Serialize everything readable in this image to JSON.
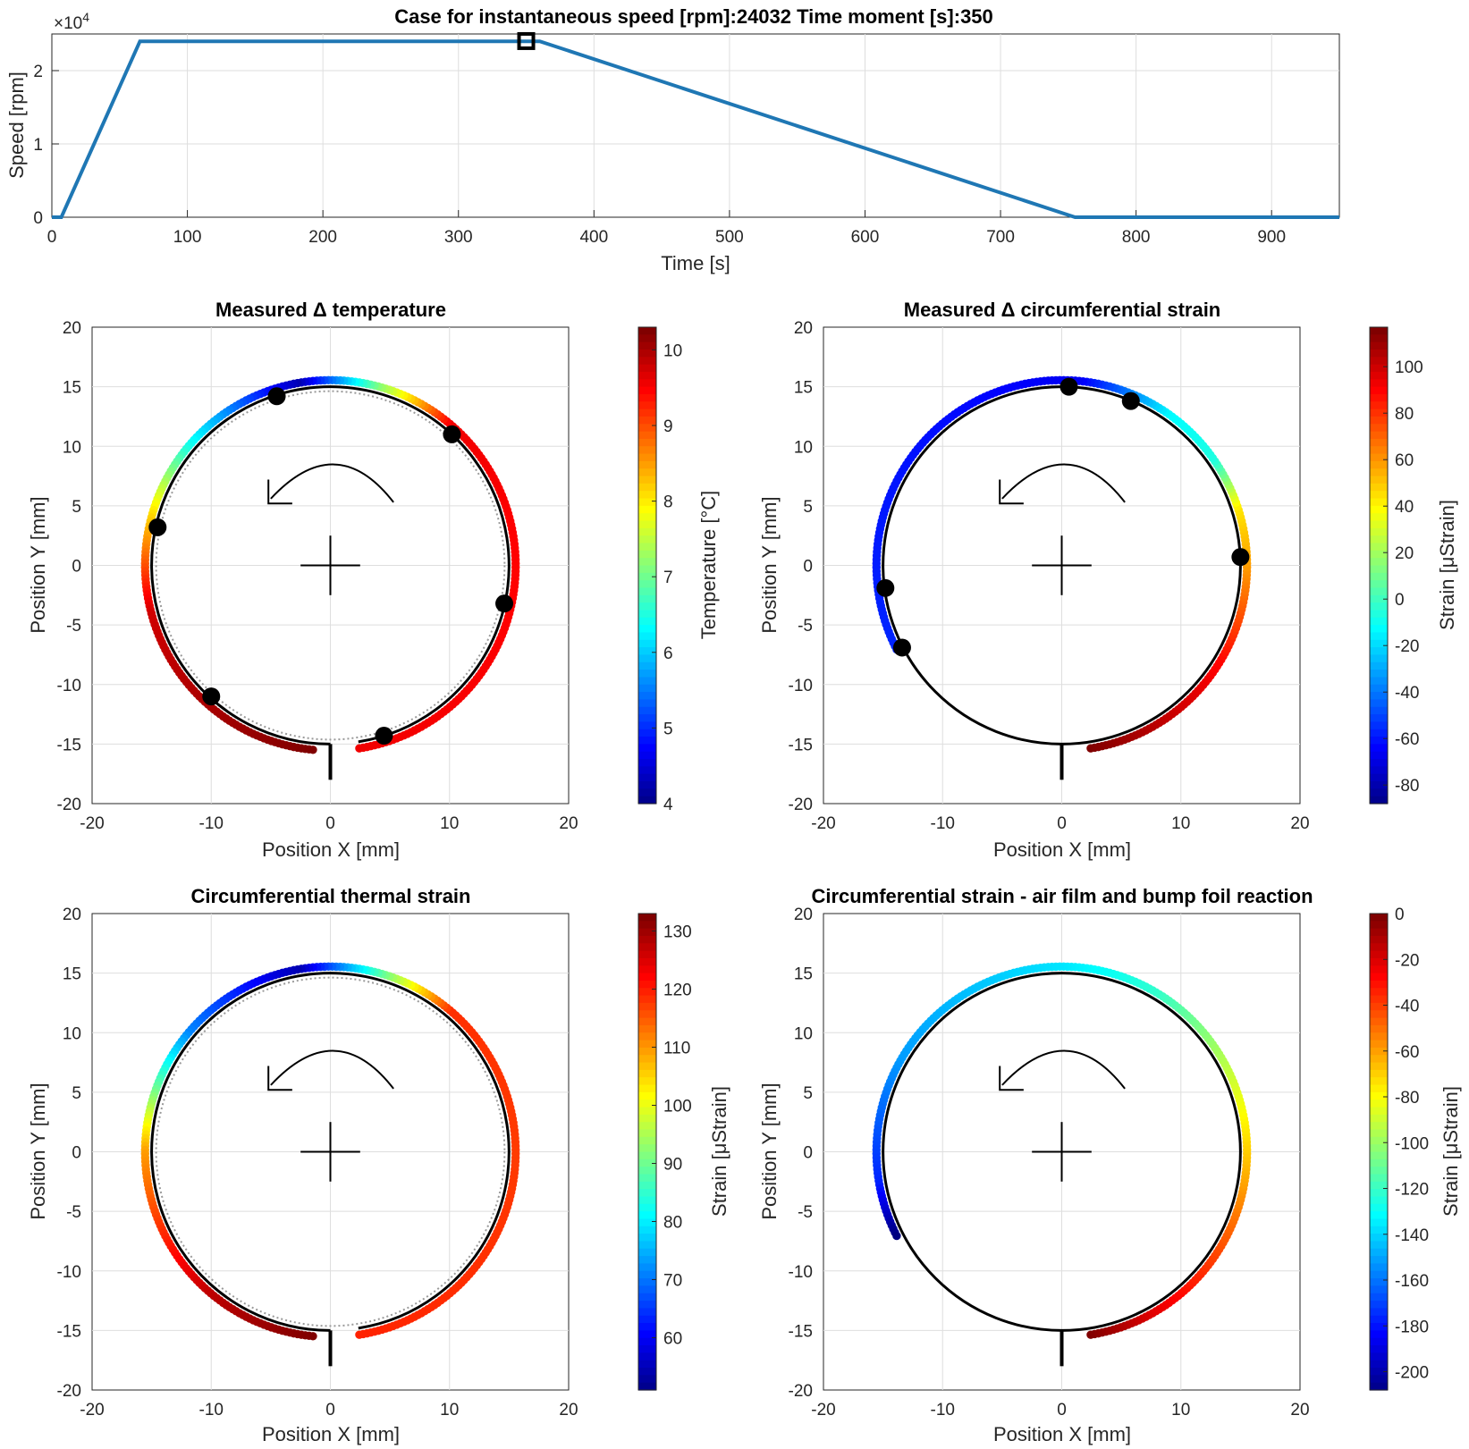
{
  "colors": {
    "speed_line": "#1f77b4",
    "marker": "#000000",
    "colormap": "jet"
  },
  "chart_data": [
    {
      "id": "speed",
      "type": "line",
      "title": "Case for instantaneous speed [rpm]:24032 Time moment [s]:350",
      "xlabel": "Time [s]",
      "ylabel": "Speed [rpm]",
      "y_exponent": "×10^4",
      "y_exponent_base": "×10",
      "y_exponent_power": "4",
      "xlim": [
        0,
        950
      ],
      "ylim": [
        0,
        2.5
      ],
      "xticks": [
        "0",
        "100",
        "200",
        "300",
        "400",
        "500",
        "600",
        "700",
        "800",
        "900"
      ],
      "yticks": [
        "0",
        "1",
        "2"
      ],
      "series": [
        {
          "x": [
            0,
            7,
            65,
            360,
            755,
            950
          ],
          "y": [
            0,
            0,
            2.4,
            2.4,
            0,
            0
          ]
        }
      ],
      "marker": {
        "x": 350,
        "y": 2.4032
      }
    },
    {
      "id": "temperature",
      "type": "scatter",
      "title": "Measured Δ temperature",
      "xlabel": "Position X [mm]",
      "ylabel": "Position Y [mm]",
      "xlim": [
        -20,
        20
      ],
      "ylim": [
        -20,
        20
      ],
      "xticks": [
        "-20",
        "-10",
        "0",
        "10",
        "20"
      ],
      "yticks": [
        "20",
        "15",
        "10",
        "5",
        "0",
        "-5",
        "-10",
        "-15",
        "-20"
      ],
      "colorbar": {
        "label": "Temperature [°C]",
        "ticks": [
          "10",
          "9",
          "8",
          "7",
          "6",
          "5",
          "4"
        ],
        "range": [
          4,
          10.3
        ]
      },
      "arc": {
        "start_deg": -81,
        "end_deg": 265
      },
      "color_profile": [
        {
          "angle": -81,
          "value": 9.6
        },
        {
          "angle": 0,
          "value": 9.5
        },
        {
          "angle": 50,
          "value": 9.6
        },
        {
          "angle": 75,
          "value": 7.2
        },
        {
          "angle": 100,
          "value": 4.3
        },
        {
          "angle": 140,
          "value": 6.5
        },
        {
          "angle": 165,
          "value": 8.2
        },
        {
          "angle": 195,
          "value": 9.8
        },
        {
          "angle": 265,
          "value": 10.3
        }
      ],
      "sensor_points": [
        {
          "x": -4.5,
          "y": 14.2
        },
        {
          "x": 10.2,
          "y": 11.0
        },
        {
          "x": -14.5,
          "y": 3.2
        },
        {
          "x": 14.6,
          "y": -3.2
        },
        {
          "x": -10.0,
          "y": -11.0
        },
        {
          "x": 4.5,
          "y": -14.3
        }
      ]
    },
    {
      "id": "measured_strain",
      "type": "scatter",
      "title": "Measured Δ circumferential strain",
      "xlabel": "Position X [mm]",
      "ylabel": "Position Y [mm]",
      "xlim": [
        -20,
        20
      ],
      "ylim": [
        -20,
        20
      ],
      "xticks": [
        "-20",
        "-10",
        "0",
        "10",
        "20"
      ],
      "yticks": [
        "20",
        "15",
        "10",
        "5",
        "0",
        "-5",
        "-10",
        "-15",
        "-20"
      ],
      "colorbar": {
        "label": "Strain [μStrain]",
        "ticks": [
          "100",
          "80",
          "60",
          "40",
          "20",
          "0",
          "-20",
          "-40",
          "-60",
          "-80"
        ],
        "range": [
          -88,
          117
        ]
      },
      "arc": {
        "start_deg": -81,
        "end_deg": 207
      },
      "color_profile": [
        {
          "angle": -81,
          "value": 117
        },
        {
          "angle": -30,
          "value": 90
        },
        {
          "angle": 0,
          "value": 60
        },
        {
          "angle": 18,
          "value": 45
        },
        {
          "angle": 35,
          "value": -5
        },
        {
          "angle": 55,
          "value": -12
        },
        {
          "angle": 85,
          "value": -65
        },
        {
          "angle": 130,
          "value": -60
        },
        {
          "angle": 207,
          "value": -55
        }
      ],
      "sensor_points": [
        {
          "x": 0.6,
          "y": 15.0
        },
        {
          "x": 5.8,
          "y": 13.8
        },
        {
          "x": 15.0,
          "y": 0.7
        },
        {
          "x": -14.8,
          "y": -1.9
        },
        {
          "x": -13.4,
          "y": -6.9
        }
      ]
    },
    {
      "id": "thermal_strain",
      "type": "scatter",
      "title": "Circumferential thermal strain",
      "xlabel": "Position X [mm]",
      "ylabel": "Position Y [mm]",
      "xlim": [
        -20,
        20
      ],
      "ylim": [
        -20,
        20
      ],
      "xticks": [
        "-20",
        "-10",
        "0",
        "10",
        "20"
      ],
      "yticks": [
        "20",
        "15",
        "10",
        "5",
        "0",
        "-5",
        "-10",
        "-15",
        "-20"
      ],
      "colorbar": {
        "label": "Strain [μStrain]",
        "ticks": [
          "130",
          "120",
          "110",
          "100",
          "90",
          "80",
          "70",
          "60"
        ],
        "range": [
          51,
          133
        ]
      },
      "arc": {
        "start_deg": -81,
        "end_deg": 265
      },
      "color_profile": [
        {
          "angle": -81,
          "value": 120
        },
        {
          "angle": 0,
          "value": 118
        },
        {
          "angle": 50,
          "value": 119
        },
        {
          "angle": 70,
          "value": 95
        },
        {
          "angle": 100,
          "value": 55
        },
        {
          "angle": 140,
          "value": 72
        },
        {
          "angle": 160,
          "value": 90
        },
        {
          "angle": 180,
          "value": 110
        },
        {
          "angle": 230,
          "value": 128
        },
        {
          "angle": 265,
          "value": 133
        }
      ]
    },
    {
      "id": "airfilm_strain",
      "type": "scatter",
      "title": "Circumferential strain - air film and bump foil reaction",
      "xlabel": "Position X [mm]",
      "ylabel": "Position Y [mm]",
      "xlim": [
        -20,
        20
      ],
      "ylim": [
        -20,
        20
      ],
      "xticks": [
        "-20",
        "-10",
        "0",
        "10",
        "20"
      ],
      "yticks": [
        "20",
        "15",
        "10",
        "5",
        "0",
        "-5",
        "-10",
        "-15",
        "-20"
      ],
      "colorbar": {
        "label": "Strain [μStrain]",
        "ticks": [
          "0",
          "-20",
          "-40",
          "-60",
          "-80",
          "-100",
          "-120",
          "-140",
          "-160",
          "-180",
          "-200"
        ],
        "range": [
          -208,
          0
        ]
      },
      "arc": {
        "start_deg": -81,
        "end_deg": 207
      },
      "color_profile": [
        {
          "angle": -81,
          "value": 0
        },
        {
          "angle": -60,
          "value": -20
        },
        {
          "angle": -20,
          "value": -50
        },
        {
          "angle": 20,
          "value": -85
        },
        {
          "angle": 60,
          "value": -120
        },
        {
          "angle": 90,
          "value": -135
        },
        {
          "angle": 150,
          "value": -150
        },
        {
          "angle": 190,
          "value": -175
        },
        {
          "angle": 207,
          "value": -208
        }
      ]
    }
  ]
}
